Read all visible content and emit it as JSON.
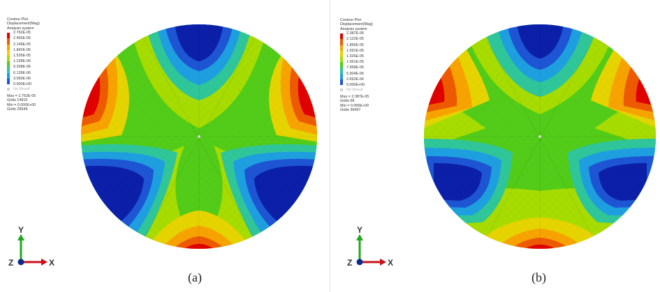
{
  "panels": [
    {
      "id": "a",
      "legend": {
        "title": "Contour Plot",
        "field": "Displacement(Mag)",
        "system": "Analysis system",
        "values": [
          "2.762E-05",
          "2.455E-05",
          "2.149E-05",
          "1.842E-05",
          "1.535E-05",
          "1.228E-05",
          "9.208E-06",
          "6.139E-06",
          "3.069E-06",
          "0.000E+00"
        ],
        "no_result": "No Result",
        "max": "Max = 2.762E-05",
        "max_grid": "Grids 14915",
        "min": "Min = 0.000E+00",
        "min_grid": "Grids 29549"
      },
      "axes": {
        "y": "Y",
        "x": "X",
        "z": "Z"
      },
      "caption": "(a)"
    },
    {
      "id": "b",
      "legend": {
        "title": "Contour Plot",
        "field": "Displacement(Mag)",
        "system": "Analysis system",
        "values": [
          "2.387E-05",
          "2.122E-05",
          "1.856E-05",
          "1.591E-05",
          "1.326E-05",
          "1.061E-05",
          "7.958E-06",
          "5.304E-06",
          "2.652E-06",
          "0.000E+00"
        ],
        "no_result": "No Result",
        "max": "Max = 2.387E-05",
        "max_grid": "Grids 68",
        "min": "Min = 0.000E+00",
        "min_grid": "Grids 36497"
      },
      "axes": {
        "y": "Y",
        "x": "X",
        "z": "Z"
      },
      "caption": "(b)"
    }
  ],
  "colors": {
    "scale": [
      "#e00000",
      "#ee5a00",
      "#f7a300",
      "#e6d400",
      "#a7dc00",
      "#52cc18",
      "#2fc69a",
      "#1e9fe0",
      "#1d55d4",
      "#0b1fa8"
    ],
    "no_result": "#cfcfcf",
    "axis_y": "#1fa81f",
    "axis_x": "#c8101a",
    "axis_z": "#0a2a8c"
  }
}
